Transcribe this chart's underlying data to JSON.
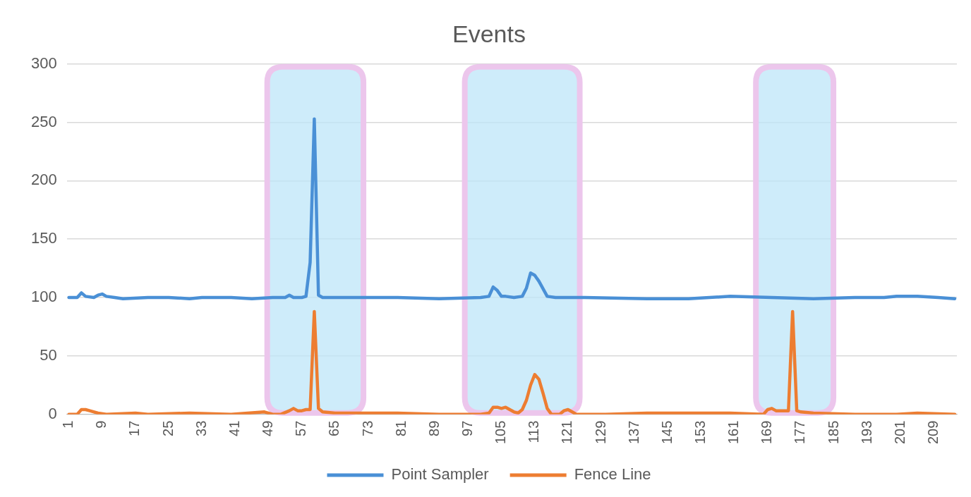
{
  "chart_data": {
    "type": "line",
    "title": "Events",
    "xlim": [
      0.5,
      214.5
    ],
    "xticks": [
      1,
      9,
      17,
      25,
      33,
      41,
      49,
      57,
      65,
      73,
      81,
      89,
      97,
      105,
      113,
      121,
      129,
      137,
      145,
      153,
      161,
      169,
      177,
      185,
      193,
      201,
      209
    ],
    "ylim": [
      0,
      300
    ],
    "yticks": [
      0,
      50,
      100,
      150,
      200,
      250,
      300
    ],
    "grid": "y",
    "legend": "bottom",
    "marker": "none",
    "line_style": "solid",
    "bands": [
      {
        "axis": "x",
        "from": 48,
        "to": 72.5,
        "color": "#bde5f8"
      },
      {
        "axis": "x",
        "from": 95.5,
        "to": 124.5,
        "color": "#bde5f8"
      },
      {
        "axis": "x",
        "from": 165.5,
        "to": 185.5,
        "color": "#bde5f8"
      }
    ],
    "series": [
      {
        "name": "Point Sampler",
        "color": "#4a90d6",
        "x": [
          1,
          3,
          4,
          5,
          7,
          8,
          9,
          10,
          12,
          14,
          20,
          25,
          30,
          33,
          40,
          45,
          50,
          53,
          54,
          55,
          57,
          58,
          59,
          60,
          61,
          62,
          70,
          80,
          90,
          100,
          102,
          103,
          104,
          105,
          106,
          108,
          110,
          111,
          112,
          113,
          114,
          116,
          118,
          125,
          140,
          150,
          160,
          170,
          180,
          190,
          197,
          200,
          205,
          210,
          214
        ],
        "values": [
          100,
          100,
          104,
          101,
          100,
          102,
          103,
          101,
          100,
          99,
          100,
          100,
          99,
          100,
          100,
          99,
          100,
          100,
          102,
          100,
          100,
          101,
          130,
          253,
          102,
          100,
          100,
          100,
          99,
          100,
          101,
          109,
          106,
          101,
          101,
          100,
          101,
          108,
          121,
          119,
          114,
          101,
          100,
          100,
          99,
          99,
          101,
          100,
          99,
          100,
          100,
          101,
          101,
          100,
          99
        ]
      },
      {
        "name": "Fence Line",
        "color": "#ed7d31",
        "x": [
          1,
          3,
          4,
          5,
          6,
          8,
          10,
          17,
          20,
          30,
          40,
          48,
          50,
          52,
          54,
          55,
          56,
          57,
          58,
          59,
          60,
          61,
          62,
          65,
          80,
          90,
          100,
          102,
          103,
          104,
          105,
          106,
          107,
          108,
          109,
          110,
          111,
          112,
          113,
          114,
          115,
          116,
          117,
          119,
          120,
          121,
          122,
          123,
          130,
          140,
          160,
          168,
          169,
          170,
          171,
          172,
          174,
          175,
          176,
          177,
          180,
          190,
          200,
          205,
          214
        ],
        "values": [
          0,
          0,
          4,
          4,
          3,
          1,
          0,
          1,
          0,
          1,
          0,
          2,
          0,
          0,
          3,
          5,
          3,
          3,
          4,
          4,
          88,
          5,
          2,
          1,
          1,
          0,
          0,
          1,
          6,
          6,
          5,
          6,
          4,
          2,
          1,
          4,
          12,
          25,
          34,
          30,
          18,
          5,
          0,
          0,
          3,
          4,
          2,
          0,
          0,
          1,
          1,
          0,
          4,
          5,
          3,
          3,
          3,
          88,
          3,
          2,
          1,
          0,
          0,
          1,
          0
        ]
      }
    ]
  }
}
